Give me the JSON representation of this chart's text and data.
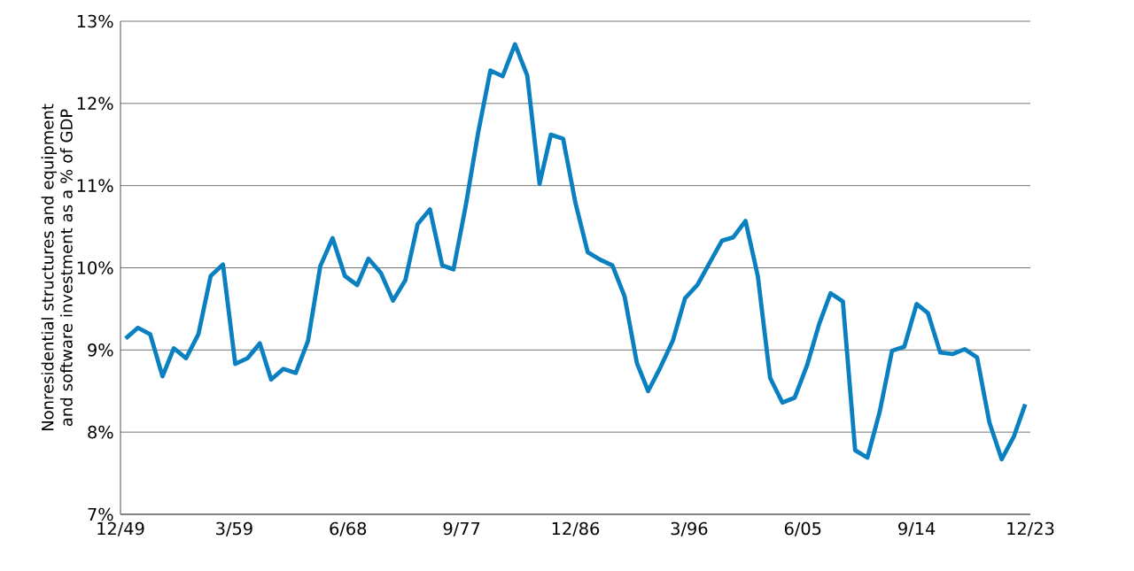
{
  "chart_data": {
    "type": "line",
    "ylabel": "Nonresidential structures and equipment and software investment as a % of GDP",
    "x": [
      "1950-05",
      "1951-05",
      "1952-05",
      "1953-05",
      "1954-04",
      "1955-04",
      "1956-04",
      "1957-04",
      "1958-04",
      "1959-04",
      "1960-04",
      "1961-04",
      "1962-03",
      "1963-03",
      "1964-03",
      "1965-03",
      "1966-03",
      "1967-03",
      "1968-03",
      "1969-03",
      "1970-02",
      "1971-02",
      "1972-02",
      "1973-02",
      "1974-02",
      "1975-02",
      "1976-02",
      "1977-01",
      "1978-01",
      "1979-01",
      "1980-01",
      "1981-01",
      "1982-01",
      "1983-01",
      "1984-01",
      "1984-12",
      "1985-12",
      "1986-12",
      "1987-12",
      "1988-12",
      "1989-12",
      "1990-12",
      "1991-12",
      "1992-11",
      "1993-11",
      "1994-11",
      "1995-11",
      "1996-11",
      "1997-11",
      "1998-11",
      "1999-10",
      "2000-10",
      "2001-10",
      "2002-10",
      "2003-10",
      "2004-10",
      "2005-10",
      "2006-10",
      "2007-09",
      "2008-09",
      "2009-09",
      "2010-09",
      "2011-09",
      "2012-09",
      "2013-09",
      "2014-09",
      "2015-08",
      "2016-08",
      "2017-08",
      "2018-08",
      "2019-08",
      "2020-08",
      "2021-08",
      "2022-08",
      "2023-07"
    ],
    "series": [
      {
        "color": "#0a80c0",
        "values": [
          9.14,
          9.27,
          9.19,
          8.68,
          9.02,
          8.9,
          9.19,
          9.9,
          10.04,
          8.83,
          8.9,
          9.08,
          8.64,
          8.77,
          8.72,
          9.11,
          10.02,
          10.36,
          9.9,
          9.79,
          10.11,
          9.94,
          9.6,
          9.85,
          10.53,
          10.71,
          10.03,
          9.98,
          10.76,
          11.64,
          12.4,
          12.33,
          12.72,
          12.34,
          11.02,
          11.62,
          11.57,
          10.79,
          10.19,
          10.1,
          10.03,
          9.65,
          8.84,
          8.5,
          8.79,
          9.11,
          9.63,
          9.79,
          10.06,
          10.33,
          10.37,
          10.57,
          9.9,
          8.66,
          8.36,
          8.42,
          8.81,
          9.32,
          9.69,
          9.59,
          7.78,
          7.69,
          8.25,
          8.99,
          9.04,
          9.56,
          9.45,
          8.97,
          8.95,
          9.01,
          8.91,
          8.12,
          7.67,
          7.95,
          8.34
        ]
      }
    ],
    "xlim": [
      "1949-12",
      "2023-12"
    ],
    "xticks": [
      {
        "value": "1949-12",
        "label": "12/49"
      },
      {
        "value": "1959-03",
        "label": "3/59"
      },
      {
        "value": "1968-06",
        "label": "6/68"
      },
      {
        "value": "1977-09",
        "label": "9/77"
      },
      {
        "value": "1986-12",
        "label": "12/86"
      },
      {
        "value": "1996-03",
        "label": "3/96"
      },
      {
        "value": "2005-06",
        "label": "6/05"
      },
      {
        "value": "2014-09",
        "label": "9/14"
      },
      {
        "value": "2023-12",
        "label": "12/23"
      }
    ],
    "ylim": [
      7,
      13
    ],
    "yticks": [
      {
        "value": 7,
        "label": "7%"
      },
      {
        "value": 8,
        "label": "8%"
      },
      {
        "value": 9,
        "label": "9%"
      },
      {
        "value": 10,
        "label": "10%"
      },
      {
        "value": 11,
        "label": "11%"
      },
      {
        "value": 12,
        "label": "12%"
      },
      {
        "value": 13,
        "label": "13%"
      }
    ],
    "grid": "y",
    "marker": "none",
    "line_style": "solid"
  }
}
